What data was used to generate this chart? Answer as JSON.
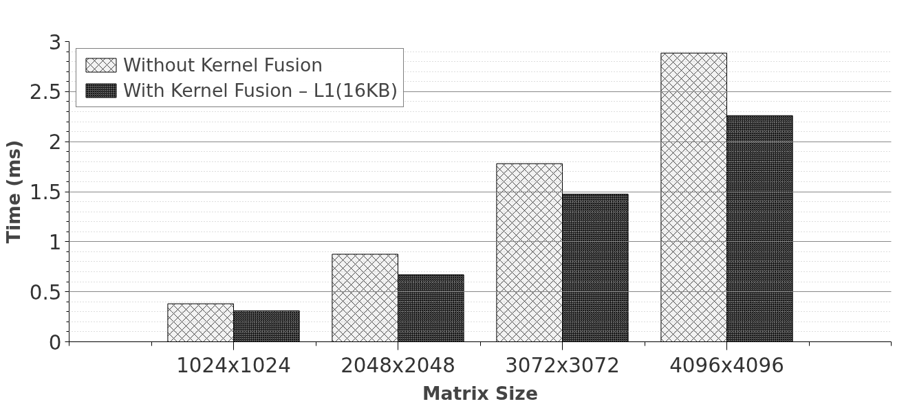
{
  "chart_data": {
    "type": "bar",
    "xlabel": "Matrix Size",
    "ylabel": "Time (ms)",
    "categories": [
      "1024x1024",
      "2048x2048",
      "3072x3072",
      "4096x4096"
    ],
    "series": [
      {
        "name": "Without Kernel Fusion",
        "color": "#f2f2f2",
        "values": [
          0.38,
          0.875,
          1.78,
          2.885
        ]
      },
      {
        "name": "With Kernel Fusion – L1(16KB)",
        "color": "#808080",
        "values": [
          0.31,
          0.67,
          1.475,
          2.26
        ]
      }
    ],
    "ylim": [
      0,
      3
    ],
    "yticks": [
      0,
      0.5,
      1,
      1.5,
      2,
      2.5,
      3
    ],
    "grid": "y",
    "legend": "top left"
  }
}
